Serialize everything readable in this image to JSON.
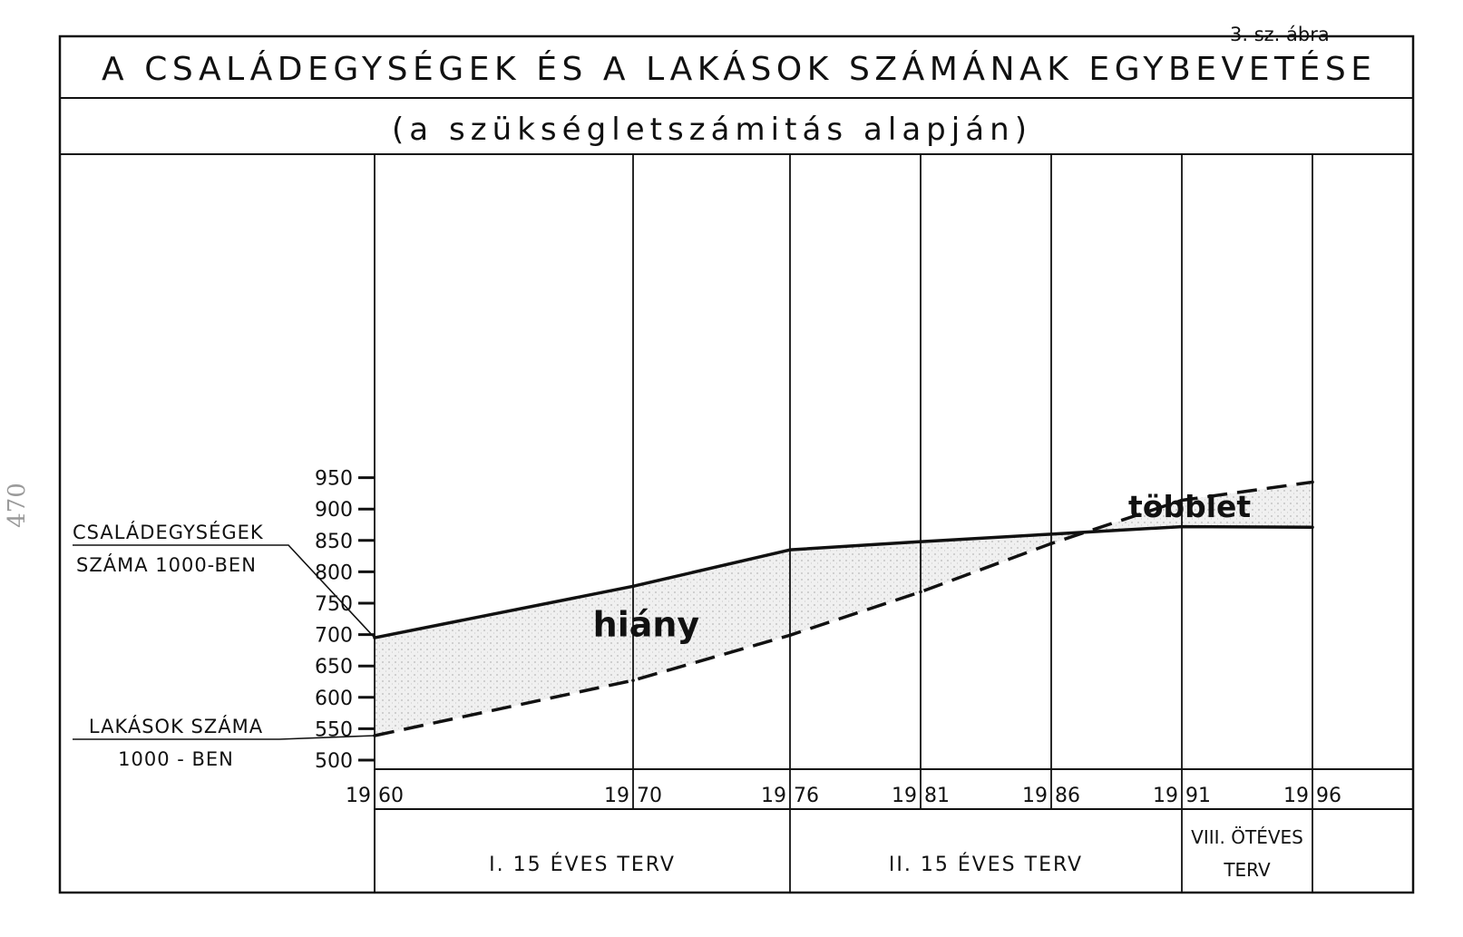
{
  "figure_label": "3. sz. ábra",
  "margin_note": "470",
  "chart_data": {
    "type": "line",
    "title": "A CSALÁDEGYSÉGEK ÉS A LAKÁSOK SZÁMÁNAK EGYBEVETÉSE",
    "subtitle": "(a szükségletszámitás alapján)",
    "x": [
      1960,
      1970,
      1976,
      1981,
      1986,
      1991,
      1996
    ],
    "x_tick_labels": [
      {
        "prefix": "19",
        "suffix": "60"
      },
      {
        "prefix": "19",
        "suffix": "70"
      },
      {
        "prefix": "19",
        "suffix": "76"
      },
      {
        "prefix": "19",
        "suffix": "81"
      },
      {
        "prefix": "19",
        "suffix": "86"
      },
      {
        "prefix": "19",
        "suffix": "91"
      },
      {
        "prefix": "19",
        "suffix": "96"
      }
    ],
    "y_ticks": [
      500,
      550,
      600,
      650,
      700,
      750,
      800,
      850,
      900,
      950
    ],
    "ylim": [
      500,
      950
    ],
    "series": [
      {
        "name": "CSALÁDEGYSÉGEK SZÁMA 1000-BEN",
        "label_lines": [
          "CSALÁDEGYSÉGEK",
          "SZÁMA 1000-BEN"
        ],
        "style": "solid",
        "values": [
          695,
          777,
          835,
          848,
          860,
          872,
          871
        ]
      },
      {
        "name": "LAKÁSOK SZÁMA 1000-BEN",
        "label_lines": [
          "LAKÁSOK SZÁMA",
          "1000 - BEN"
        ],
        "style": "dashed",
        "values": [
          539,
          627,
          699,
          768,
          845,
          914,
          943
        ]
      }
    ],
    "annotations": [
      {
        "text": "hiány",
        "x": 1970.5,
        "y": 697
      },
      {
        "text": "többlet",
        "x": 1991.3,
        "y": 887
      }
    ],
    "periods": [
      {
        "label": "I. 15 ÉVES TERV",
        "from": 1960,
        "to": 1976
      },
      {
        "label": "II. 15 ÉVES TERV",
        "from": 1976,
        "to": 1991
      },
      {
        "label_lines": [
          "VIII. ÖTÉVES",
          "TERV"
        ],
        "from": 1991,
        "to": 1996
      }
    ],
    "grid": "vertical lines at tick years",
    "colors": {
      "ink": "#111111",
      "shade": "#d4d4d4",
      "paper": "#ffffff"
    }
  }
}
